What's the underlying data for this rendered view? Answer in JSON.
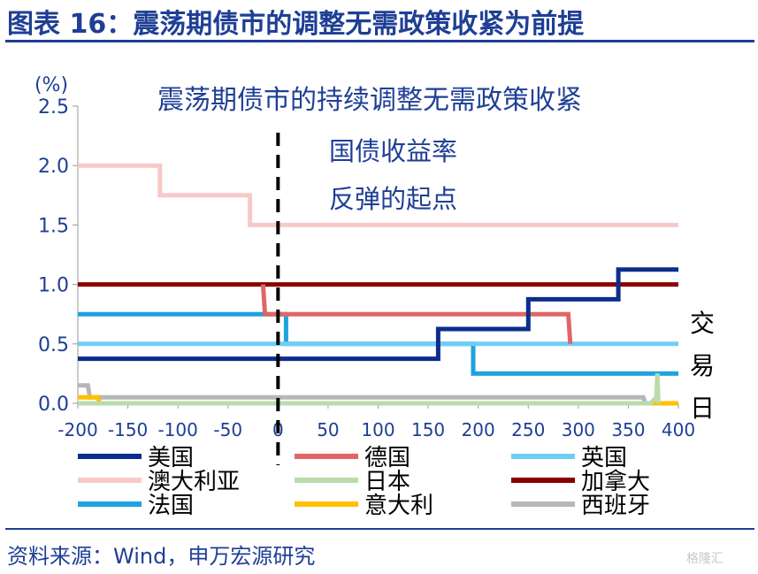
{
  "figure_title": "图表 16：震荡期债市的调整无需政策收紧为前提",
  "source_note": "资料来源：Wind，申万宏源研究",
  "watermark": "格隆汇",
  "colors": {
    "title": "#1f3f95",
    "axis_text": "#1f3f95",
    "annotation_text": "#1f3f95"
  },
  "chart_data": {
    "type": "line",
    "title": "震荡期债市的持续调整无需政策收紧",
    "ylabel": "(%)",
    "xlabel": "交易日",
    "xlim": [
      -200,
      400
    ],
    "ylim": [
      0,
      2.5
    ],
    "xticks": [
      "-200",
      "-150",
      "-100",
      "-50",
      "0",
      "50",
      "100",
      "150",
      "200",
      "250",
      "300",
      "350",
      "400"
    ],
    "yticks": [
      "0.0",
      "0.5",
      "1.0",
      "1.5",
      "2.0",
      "2.5"
    ],
    "grid": false,
    "legend_position": "bottom",
    "vline": {
      "x": 0,
      "style": "dashed",
      "color": "#000000"
    },
    "annotation": [
      "国债收益率",
      "反弹的起点"
    ],
    "series": [
      {
        "name": "美国",
        "color": "#0b2e8c",
        "x": [
          -200,
          160,
          160,
          250,
          250,
          340,
          340,
          400
        ],
        "y": [
          0.375,
          0.375,
          0.625,
          0.625,
          0.875,
          0.875,
          1.125,
          1.125
        ]
      },
      {
        "name": "德国",
        "color": "#e06666",
        "x": [
          -15,
          -13,
          290,
          292
        ],
        "y": [
          1.0,
          0.75,
          0.75,
          0.5
        ]
      },
      {
        "name": "英国",
        "color": "#6ecff6",
        "x": [
          -200,
          400
        ],
        "y": [
          0.5,
          0.5
        ]
      },
      {
        "name": "澳大利亚",
        "color": "#f7c9c9",
        "x": [
          -200,
          -118,
          -118,
          -28,
          -28,
          400
        ],
        "y": [
          2.0,
          2.0,
          1.75,
          1.75,
          1.5,
          1.5
        ]
      },
      {
        "name": "日本",
        "color": "#b9dcaa",
        "x": [
          -200,
          372,
          378,
          379,
          380
        ],
        "y": [
          0.0,
          0.0,
          0.05,
          0.25,
          0.0
        ]
      },
      {
        "name": "加拿大",
        "color": "#8b0000",
        "x": [
          -200,
          400
        ],
        "y": [
          1.0,
          1.0
        ]
      },
      {
        "name": "法国",
        "color": "#1ea2e0",
        "x": [
          -200,
          8,
          8,
          195,
          195,
          400
        ],
        "y": [
          0.75,
          0.75,
          0.5,
          0.5,
          0.25,
          0.25
        ]
      },
      {
        "name": "意大利",
        "color": "#ffc000",
        "x": [
          -200,
          -180,
          -178,
          400
        ],
        "y": [
          0.05,
          0.05,
          0.0,
          0.0
        ]
      },
      {
        "name": "西班牙",
        "color": "#b7b7b7",
        "x": [
          -200,
          -190,
          -188,
          365,
          367,
          400
        ],
        "y": [
          0.15,
          0.15,
          0.05,
          0.05,
          0.0,
          0.0
        ]
      }
    ]
  }
}
